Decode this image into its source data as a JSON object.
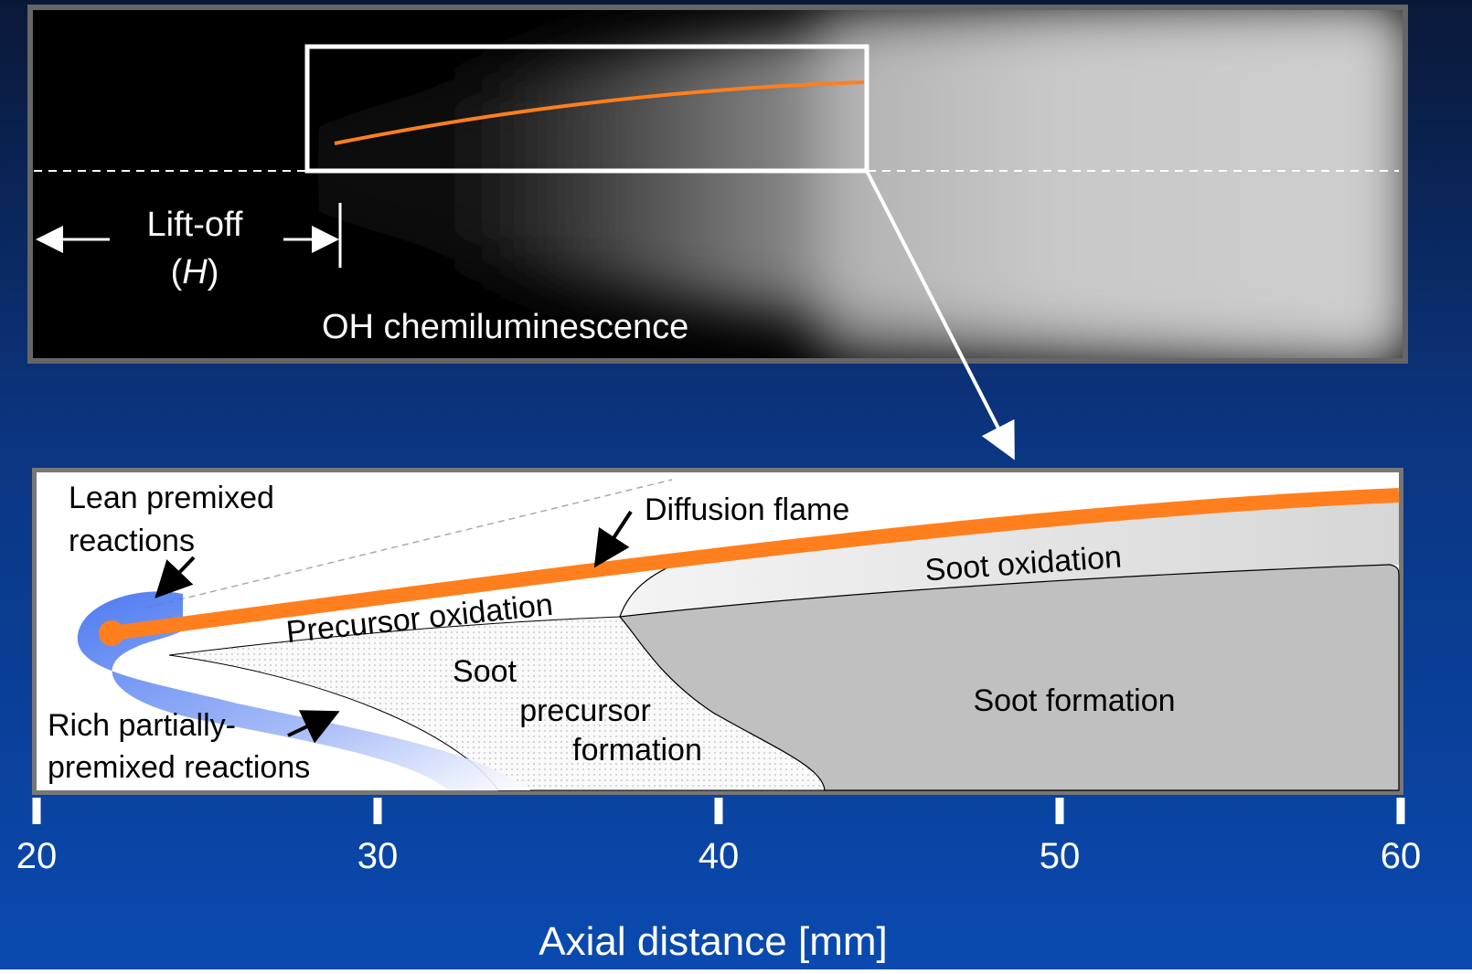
{
  "oh_image": {
    "caption": "OH chemiluminescence",
    "lift_off": {
      "label": "Lift-off",
      "paren_open": "(",
      "symbol": "H",
      "paren_close": ")"
    }
  },
  "schematic": {
    "lean_premixed": [
      "Lean premixed",
      "reactions"
    ],
    "diffusion_flame": "Diffusion flame",
    "soot_oxidation": "Soot oxidation",
    "precursor_oxidation": "Precursor oxidation",
    "soot_precursor_formation": [
      "Soot",
      "precursor",
      "formation"
    ],
    "soot_formation": "Soot formation",
    "rich_premixed": [
      "Rich partially-",
      "premixed reactions"
    ]
  },
  "axis": {
    "label": "Axial distance [mm]",
    "lim": [
      20,
      60
    ],
    "ticks": [
      20,
      30,
      40,
      50,
      60
    ]
  }
}
